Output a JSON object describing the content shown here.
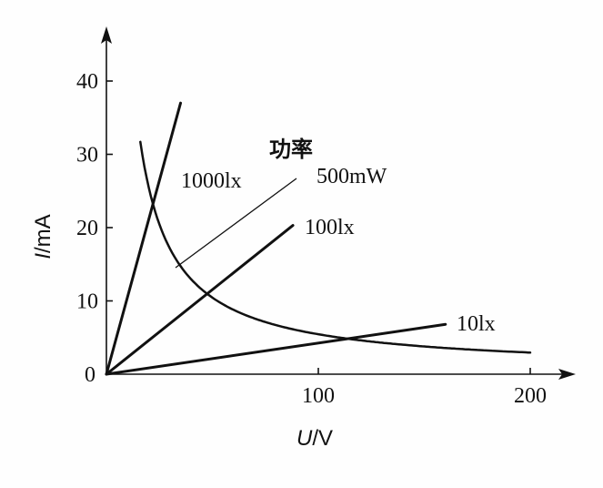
{
  "chart_data": {
    "type": "line",
    "title": "",
    "xlabel": {
      "symbol": "U",
      "unit": "/V"
    },
    "ylabel": {
      "symbol": "I",
      "unit": "/mA"
    },
    "xlim": [
      0,
      220
    ],
    "ylim": [
      0,
      46
    ],
    "x_ticks": [
      {
        "value": 0,
        "label": "0"
      },
      {
        "value": 100,
        "label": "100"
      },
      {
        "value": 200,
        "label": "200"
      }
    ],
    "y_ticks": [
      {
        "value": 10,
        "label": "10"
      },
      {
        "value": 20,
        "label": "20"
      },
      {
        "value": 30,
        "label": "30"
      },
      {
        "value": 40,
        "label": "40"
      }
    ],
    "grid": false,
    "series": [
      {
        "name": "1000lx",
        "x": [
          0,
          35
        ],
        "y": [
          0,
          37
        ]
      },
      {
        "name": "100lx",
        "x": [
          0,
          88
        ],
        "y": [
          0,
          20.3
        ]
      },
      {
        "name": "10lx",
        "x": [
          0,
          160
        ],
        "y": [
          0,
          6.8
        ]
      }
    ],
    "power_curve": {
      "label_cn": "功率",
      "label": "500mW",
      "power_mW": 500,
      "x_range": [
        16,
        200
      ]
    }
  }
}
